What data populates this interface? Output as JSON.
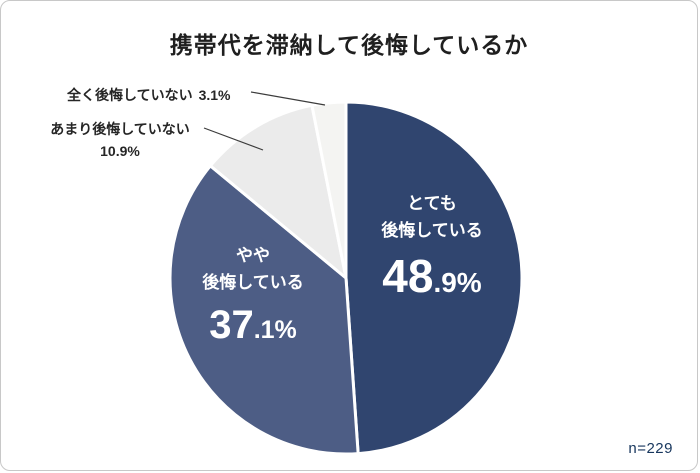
{
  "chart_data": {
    "type": "pie",
    "title": "携帯代を滞納して後悔しているか",
    "categories": [
      "とても後悔している",
      "やや後悔している",
      "あまり後悔していない",
      "全く後悔していない"
    ],
    "values": [
      48.9,
      37.1,
      10.9,
      3.1
    ],
    "unit": "%",
    "sample_size": "n=229",
    "start_angle_deg": 0,
    "direction": "clockwise",
    "legend": "none",
    "colors": [
      "#30456F",
      "#4D5D85",
      "#EBEBEB",
      "#F4F4F2"
    ],
    "labels": {
      "slice0": {
        "lines": [
          "とても",
          "後悔している"
        ],
        "pct_big": "48",
        "pct_small": ".9%",
        "placement": "inside"
      },
      "slice1": {
        "lines": [
          "やや",
          "後悔している"
        ],
        "pct_big": "37",
        "pct_small": ".1%",
        "placement": "inside"
      },
      "slice2": {
        "text": "あまり後悔していない",
        "pct": "10.9%",
        "placement": "outside-left"
      },
      "slice3": {
        "text": "全く後悔していない",
        "pct": "3.1%",
        "placement": "outside-left"
      }
    }
  }
}
